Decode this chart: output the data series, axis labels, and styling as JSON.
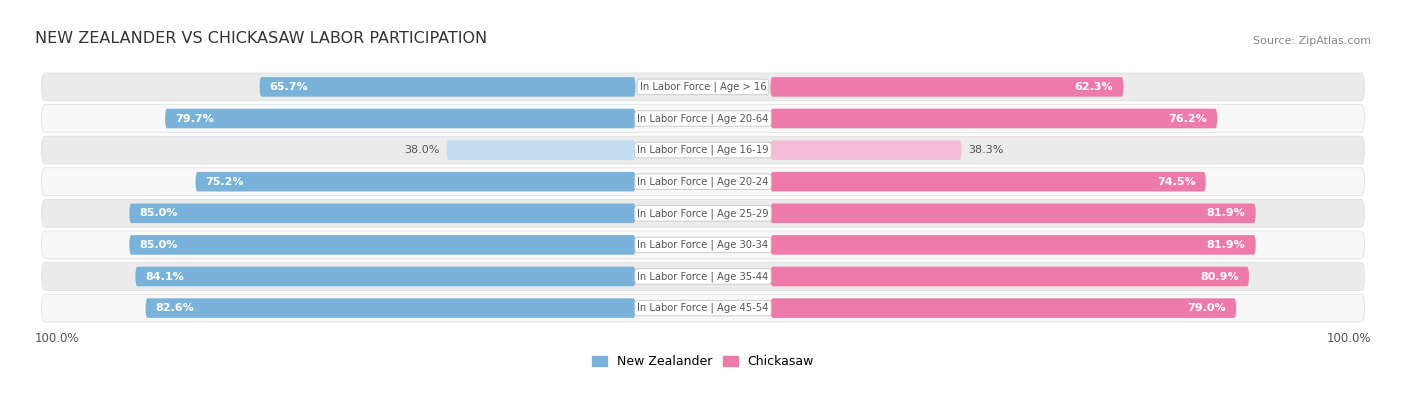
{
  "title": "NEW ZEALANDER VS CHICKASAW LABOR PARTICIPATION",
  "source": "Source: ZipAtlas.com",
  "categories": [
    "In Labor Force | Age > 16",
    "In Labor Force | Age 20-64",
    "In Labor Force | Age 16-19",
    "In Labor Force | Age 20-24",
    "In Labor Force | Age 25-29",
    "In Labor Force | Age 30-34",
    "In Labor Force | Age 35-44",
    "In Labor Force | Age 45-54"
  ],
  "nz_values": [
    65.7,
    79.7,
    38.0,
    75.2,
    85.0,
    85.0,
    84.1,
    82.6
  ],
  "ch_values": [
    62.3,
    76.2,
    38.3,
    74.5,
    81.9,
    81.9,
    80.9,
    79.0
  ],
  "nz_color": "#7ab3d9",
  "nz_color_light": "#c5ddf0",
  "ch_color": "#ee7aaa",
  "ch_color_light": "#f5bdd5",
  "row_bg": "#ebebeb",
  "row_bg_alt": "#f8f8f8",
  "legend_nz": "New Zealander",
  "legend_ch": "Chickasaw",
  "axis_label": "100.0%",
  "title_color": "#333333",
  "source_color": "#888888",
  "val_color_white": "#ffffff",
  "val_color_dark": "#555555",
  "center_label_color": "#555555",
  "center_label_bg": "#ffffff",
  "center_label_border": "#cccccc"
}
